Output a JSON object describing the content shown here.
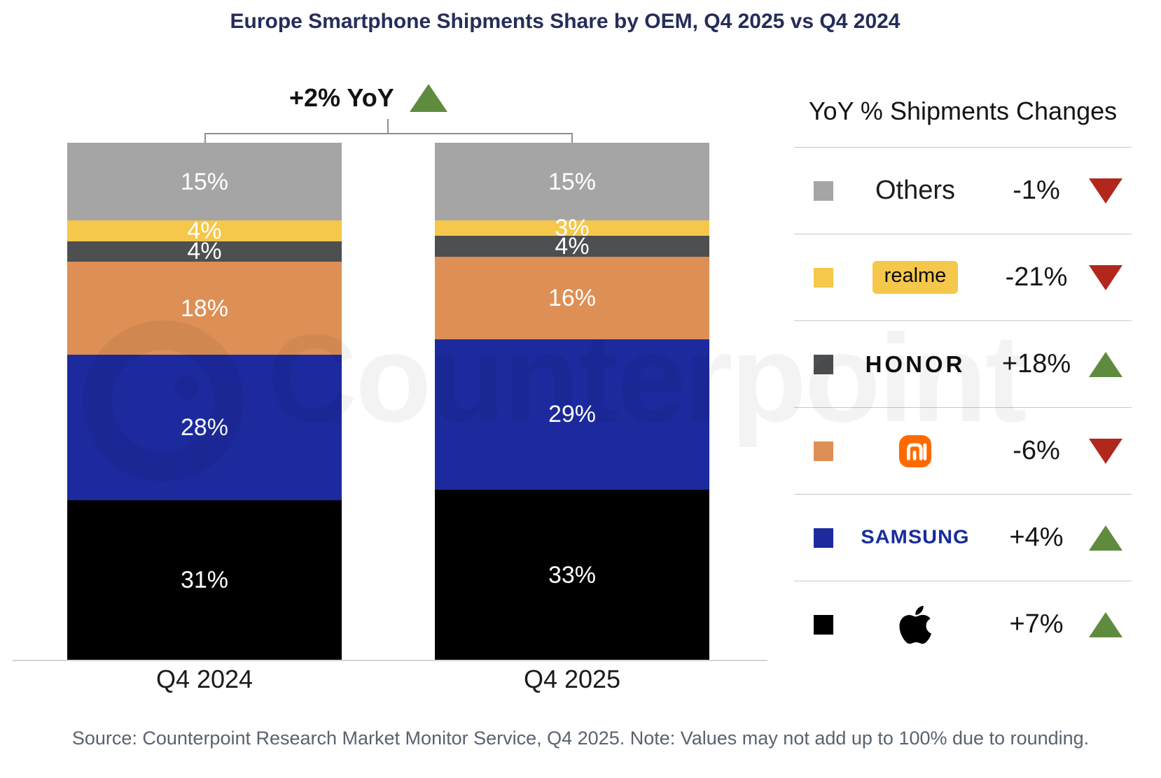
{
  "title": "Europe Smartphone Shipments Share by OEM, Q4 2025 vs Q4 2024",
  "callout": {
    "label": "+2% YoY",
    "direction": "up"
  },
  "chart_data": {
    "type": "bar",
    "stacked": true,
    "unit": "%",
    "categories": [
      "Q4 2024",
      "Q4 2025"
    ],
    "series": [
      {
        "name": "Apple",
        "color": "#000000",
        "values": [
          31,
          33
        ]
      },
      {
        "name": "Samsung",
        "color": "#1c2a9e",
        "values": [
          28,
          29
        ]
      },
      {
        "name": "Xiaomi",
        "color": "#dd8f55",
        "values": [
          18,
          16
        ]
      },
      {
        "name": "HONOR",
        "color": "#4d4f51",
        "values": [
          4,
          4
        ]
      },
      {
        "name": "realme",
        "color": "#f5c74a",
        "values": [
          4,
          3
        ]
      },
      {
        "name": "Others",
        "color": "#a5a5a5",
        "values": [
          15,
          15
        ]
      }
    ],
    "total_yoy_change": "+2% YoY",
    "ylim": [
      0,
      100
    ],
    "grid": false,
    "legend_position": "right"
  },
  "legend": {
    "title": "YoY % Shipments Changes",
    "rows": [
      {
        "brand": "Others",
        "logo": "text",
        "swatch": "#a5a5a5",
        "change": "-1%",
        "direction": "down"
      },
      {
        "brand": "realme",
        "logo": "realme",
        "swatch": "#f5c74a",
        "change": "-21%",
        "direction": "down"
      },
      {
        "brand": "HONOR",
        "logo": "honor",
        "swatch": "#4d4f51",
        "change": "+18%",
        "direction": "up"
      },
      {
        "brand": "Xiaomi",
        "logo": "xiaomi",
        "swatch": "#dd8f55",
        "change": "-6%",
        "direction": "down"
      },
      {
        "brand": "SAMSUNG",
        "logo": "samsung",
        "swatch": "#1c2a9e",
        "change": "+4%",
        "direction": "up"
      },
      {
        "brand": "Apple",
        "logo": "apple",
        "swatch": "#000000",
        "change": "+7%",
        "direction": "up"
      }
    ]
  },
  "watermark": {
    "text": "Counterpoint"
  },
  "footer": {
    "source_note": "Source: Counterpoint Research Market Monitor Service, Q4 2025. Note: Values may not add up to 100% due to rounding."
  },
  "colors": {
    "up_green": "#5f8b3e",
    "down_red": "#b2271c",
    "samsung_blue": "#172c9b",
    "xiaomi_orange": "#ff6900",
    "realme_badge_yellow": "#f5c74a",
    "title_navy": "#252d59",
    "axis_label": "#1a1a1a",
    "source_text": "#59626f"
  }
}
